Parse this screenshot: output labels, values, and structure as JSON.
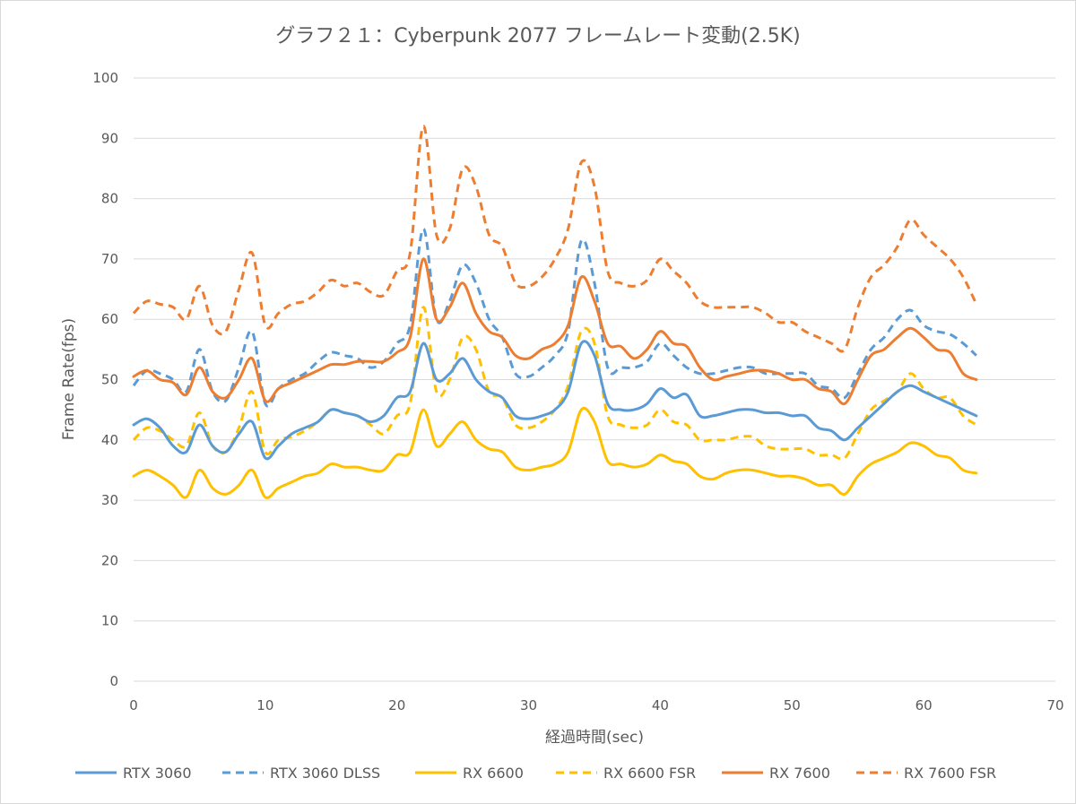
{
  "chart_data": {
    "type": "line",
    "title": "グラフ２１：Cyberpunk 2077 フレームレート変動(2.5K)",
    "xlabel": "経過時間(sec)",
    "ylabel": "Frame Rate(fps)",
    "xlim": [
      0,
      70
    ],
    "ylim": [
      0,
      100
    ],
    "x_ticks": [
      "0",
      "10",
      "20",
      "30",
      "40",
      "50",
      "60",
      "70"
    ],
    "y_ticks": [
      "0",
      "10",
      "20",
      "30",
      "40",
      "50",
      "60",
      "70",
      "80",
      "90",
      "100"
    ],
    "grid": "horizontal",
    "legend_position": "bottom",
    "x": [
      0,
      1,
      2,
      3,
      4,
      5,
      6,
      7,
      8,
      9,
      10,
      11,
      12,
      13,
      14,
      15,
      16,
      17,
      18,
      19,
      20,
      21,
      22,
      23,
      24,
      25,
      26,
      27,
      28,
      29,
      30,
      31,
      32,
      33,
      34,
      35,
      36,
      37,
      38,
      39,
      40,
      41,
      42,
      43,
      44,
      45,
      46,
      47,
      48,
      49,
      50,
      51,
      52,
      53,
      54,
      55,
      56,
      57,
      58,
      59,
      60,
      61,
      62,
      63,
      64
    ],
    "series": [
      {
        "name": "RTX 3060",
        "color": "#5b9bd5",
        "dash": "solid",
        "values": [
          42.5,
          43.5,
          42,
          39,
          38,
          42.5,
          39,
          38,
          41,
          43,
          37,
          39,
          41,
          42,
          43,
          45,
          44.5,
          44,
          43,
          44,
          47,
          48,
          56,
          50,
          51,
          53.5,
          50,
          48,
          47,
          44,
          43.5,
          44,
          45,
          48,
          56,
          54,
          46,
          45,
          45,
          46,
          48.5,
          47,
          47.5,
          44,
          44,
          44.5,
          45,
          45,
          44.5,
          44.5,
          44,
          44,
          42,
          41.5,
          40,
          42,
          44,
          46,
          48,
          49,
          48,
          47,
          46,
          45,
          44
        ]
      },
      {
        "name": "RTX 3060 DLSS",
        "color": "#5b9bd5",
        "dash": "dashed",
        "values": [
          49,
          51.5,
          51,
          50,
          48,
          55,
          48,
          46.5,
          52,
          58,
          46,
          48.5,
          50,
          51,
          53,
          54.5,
          54,
          53.5,
          52,
          53,
          56,
          59,
          75,
          60,
          63,
          69,
          66,
          60,
          57,
          51,
          50.5,
          52,
          54,
          58,
          73,
          66,
          52,
          52,
          52,
          53,
          56,
          54,
          52,
          51,
          51,
          51.5,
          52,
          52,
          51,
          51,
          51,
          51,
          49,
          48.5,
          47,
          51,
          55,
          57,
          60,
          61.5,
          59,
          58,
          57.5,
          56,
          54
        ]
      },
      {
        "name": "RX 6600",
        "color": "#ffc000",
        "dash": "solid",
        "values": [
          34,
          35,
          34,
          32.5,
          30.5,
          35,
          32,
          31,
          32.5,
          35,
          30.5,
          32,
          33,
          34,
          34.5,
          36,
          35.5,
          35.5,
          35,
          35,
          37.5,
          38,
          45,
          39,
          41,
          43,
          40,
          38.5,
          38,
          35.5,
          35,
          35.5,
          36,
          38,
          45,
          43,
          36.5,
          36,
          35.5,
          36,
          37.5,
          36.5,
          36,
          34,
          33.5,
          34.5,
          35,
          35,
          34.5,
          34,
          34,
          33.5,
          32.5,
          32.5,
          31,
          34,
          36,
          37,
          38,
          39.5,
          39,
          37.5,
          37,
          35,
          34.5
        ]
      },
      {
        "name": "RX 6600 FSR",
        "color": "#ffc000",
        "dash": "dashed",
        "values": [
          40,
          42,
          41.5,
          40,
          39,
          44.5,
          39,
          38,
          42,
          48,
          38,
          40,
          40.5,
          41.5,
          43,
          45,
          44.5,
          44,
          42.5,
          41,
          44,
          46,
          62,
          48,
          50,
          57,
          55,
          48,
          47,
          42.5,
          42,
          43,
          45,
          49,
          58,
          56,
          44,
          42.5,
          42,
          42.5,
          45,
          43,
          42.5,
          40,
          40,
          40,
          40.5,
          40.5,
          39,
          38.5,
          38.5,
          38.5,
          37.5,
          37.5,
          37,
          41,
          45,
          46.5,
          48,
          51,
          48.5,
          47,
          47,
          44,
          42.5
        ]
      },
      {
        "name": "RX 7600",
        "color": "#ed7d31",
        "dash": "solid",
        "values": [
          50.5,
          51.5,
          50,
          49.5,
          47.5,
          52,
          48,
          47,
          50,
          53.5,
          46.5,
          48.5,
          49.5,
          50.5,
          51.5,
          52.5,
          52.5,
          53,
          53,
          53,
          54.5,
          57,
          70,
          60,
          62,
          66,
          61,
          58,
          57,
          54,
          53.5,
          55,
          56,
          59,
          67,
          63,
          56,
          55.5,
          53.5,
          55,
          58,
          56,
          55.5,
          52,
          50,
          50.5,
          51,
          51.5,
          51.5,
          51,
          50,
          50,
          48.5,
          48,
          46,
          50,
          54,
          55,
          57,
          58.5,
          57,
          55,
          54.5,
          51,
          50
        ]
      },
      {
        "name": "RX 7600 FSR",
        "color": "#ed7d31",
        "dash": "dashed",
        "values": [
          61,
          63,
          62.5,
          62,
          60,
          65.5,
          59,
          58,
          65,
          71,
          59,
          61,
          62.5,
          63,
          64.5,
          66.5,
          65.5,
          66,
          64.5,
          64,
          68,
          71,
          92,
          74,
          75,
          85,
          82,
          74,
          72,
          66,
          65.5,
          67,
          70,
          75,
          86,
          82,
          68,
          66,
          65.5,
          66.5,
          70,
          68,
          66,
          63,
          62,
          62,
          62,
          62,
          61,
          59.5,
          59.5,
          58,
          57,
          56,
          55,
          62,
          67,
          69,
          72,
          76.5,
          74,
          72,
          70,
          67,
          62.5
        ]
      }
    ]
  }
}
